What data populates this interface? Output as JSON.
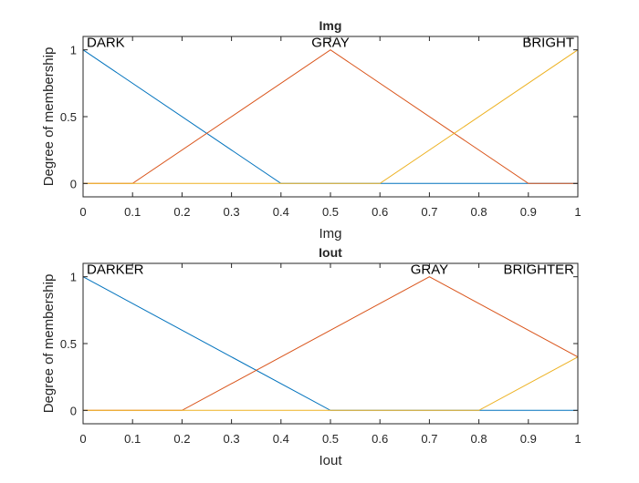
{
  "chart_data": [
    {
      "type": "line",
      "title": "Img",
      "xlabel": "Img",
      "ylabel": "Degree of membership",
      "xlim": [
        0,
        1
      ],
      "ylim": [
        -0.1,
        1.1
      ],
      "xticks": [
        0,
        0.1,
        0.2,
        0.3,
        0.4,
        0.5,
        0.6,
        0.7,
        0.8,
        0.9,
        1
      ],
      "xtick_labels": [
        "0",
        "0.1",
        "0.2",
        "0.3",
        "0.4",
        "0.5",
        "0.6",
        "0.7",
        "0.8",
        "0.9",
        "1"
      ],
      "yticks": [
        0,
        0.5,
        1
      ],
      "ytick_labels": [
        "0",
        "0.5",
        "1"
      ],
      "grid": false,
      "series": [
        {
          "name": "DARK",
          "color": "#0072BD",
          "x": [
            0,
            0.4,
            1
          ],
          "y": [
            1,
            0,
            0
          ]
        },
        {
          "name": "GRAY",
          "color": "#D95319",
          "x": [
            0,
            0.1,
            0.5,
            0.9,
            1
          ],
          "y": [
            0,
            0,
            1,
            0,
            0
          ]
        },
        {
          "name": "BRIGHT",
          "color": "#EDB120",
          "x": [
            0,
            0.6,
            1
          ],
          "y": [
            0,
            0,
            1
          ]
        }
      ]
    },
    {
      "type": "line",
      "title": "Iout",
      "xlabel": "Iout",
      "ylabel": "Degree of membership",
      "xlim": [
        0,
        1
      ],
      "ylim": [
        -0.1,
        1.1
      ],
      "xticks": [
        0,
        0.1,
        0.2,
        0.3,
        0.4,
        0.5,
        0.6,
        0.7,
        0.8,
        0.9,
        1
      ],
      "xtick_labels": [
        "0",
        "0.1",
        "0.2",
        "0.3",
        "0.4",
        "0.5",
        "0.6",
        "0.7",
        "0.8",
        "0.9",
        "1"
      ],
      "yticks": [
        0,
        0.5,
        1
      ],
      "ytick_labels": [
        "0",
        "0.5",
        "1"
      ],
      "grid": false,
      "series": [
        {
          "name": "DARKER",
          "color": "#0072BD",
          "x": [
            0,
            0.5,
            1
          ],
          "y": [
            1,
            0,
            0
          ]
        },
        {
          "name": "GRAY",
          "color": "#D95319",
          "x": [
            0,
            0.2,
            0.7,
            1
          ],
          "y": [
            0,
            0,
            1,
            0.4
          ]
        },
        {
          "name": "BRIGHTER",
          "color": "#EDB120",
          "x": [
            0,
            0.8,
            1
          ],
          "y": [
            0,
            0,
            0.4
          ]
        }
      ]
    }
  ]
}
